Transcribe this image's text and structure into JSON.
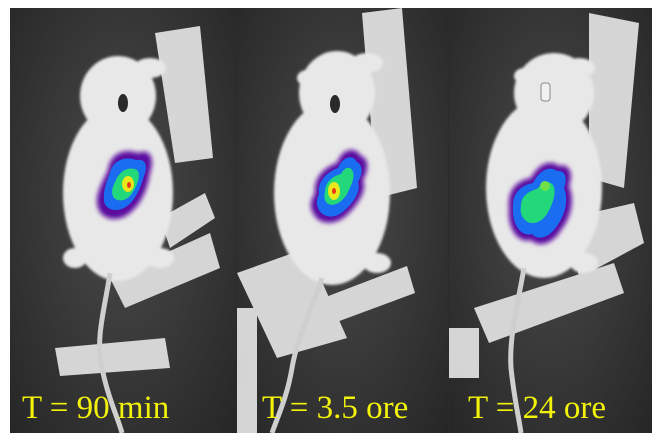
{
  "panels": [
    {
      "label": "T = 90 min"
    },
    {
      "label": "T = 3.5 ore"
    },
    {
      "label": "T = 24 ore"
    }
  ],
  "colors": {
    "label_text": "#f2f20a",
    "background": "#333333",
    "mouse": "#e6e6e6",
    "tape": "#dcdcdc",
    "signal_outer": "#5b0fa0",
    "signal_mid": "#1a6cf0",
    "signal_inner": "#22d87a",
    "signal_core": "#e8e81a"
  }
}
